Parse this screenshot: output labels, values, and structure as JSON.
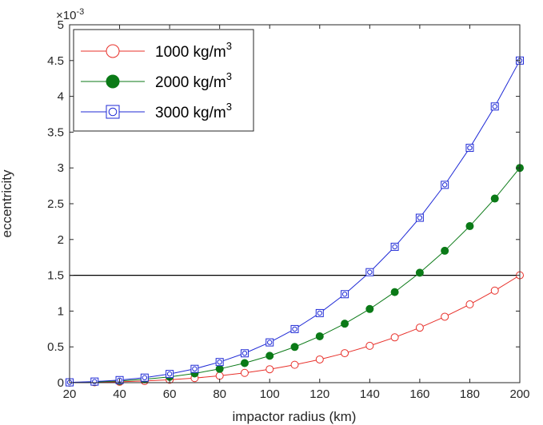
{
  "chart_data": {
    "type": "line",
    "title": "",
    "xlabel": "impactor radius (km)",
    "ylabel": "eccentricity",
    "y_exponent_label": "×10",
    "y_exponent_power": "-3",
    "xlim": [
      20,
      200
    ],
    "ylim": [
      0,
      5
    ],
    "xticks": [
      20,
      40,
      60,
      80,
      100,
      120,
      140,
      160,
      180,
      200
    ],
    "yticks": [
      0,
      0.5,
      1,
      1.5,
      2,
      2.5,
      3,
      3.5,
      4,
      4.5,
      5
    ],
    "ytick_labels": [
      "0",
      "0.5",
      "1",
      "1.5",
      "2",
      "2.5",
      "3",
      "3.5",
      "4",
      "4.5",
      "5"
    ],
    "grid": false,
    "legend_position": "top-left",
    "reference_line": {
      "y": 1.5,
      "color": "#000000"
    },
    "x": [
      20,
      30,
      40,
      50,
      60,
      70,
      80,
      90,
      100,
      110,
      120,
      130,
      140,
      150,
      160,
      170,
      180,
      190,
      200
    ],
    "series": [
      {
        "name": "1000 kg/m",
        "name_superscript": "3",
        "color": "#e8302a",
        "marker": "open-circle",
        "values": [
          0.0015,
          0.005,
          0.012,
          0.0234,
          0.0405,
          0.0643,
          0.096,
          0.1367,
          0.1875,
          0.2496,
          0.324,
          0.412,
          0.5145,
          0.6328,
          0.768,
          0.9212,
          1.0935,
          1.2861,
          1.5
        ]
      },
      {
        "name": "2000 kg/m",
        "name_superscript": "3",
        "color": "#0b7a17",
        "marker": "filled-circle",
        "values": [
          0.003,
          0.0101,
          0.024,
          0.0469,
          0.081,
          0.1286,
          0.192,
          0.2734,
          0.375,
          0.4991,
          0.648,
          0.8239,
          1.029,
          1.2656,
          1.536,
          1.8424,
          2.187,
          2.5721,
          3.0
        ]
      },
      {
        "name": "3000 kg/m",
        "name_superscript": "3",
        "color": "#1f2ad6",
        "marker": "open-square-dot",
        "values": [
          0.0045,
          0.0152,
          0.036,
          0.0703,
          0.1215,
          0.1929,
          0.288,
          0.4101,
          0.5625,
          0.7487,
          0.972,
          1.2359,
          1.5435,
          1.8984,
          2.304,
          2.7636,
          3.2805,
          3.8582,
          4.5
        ]
      }
    ]
  }
}
